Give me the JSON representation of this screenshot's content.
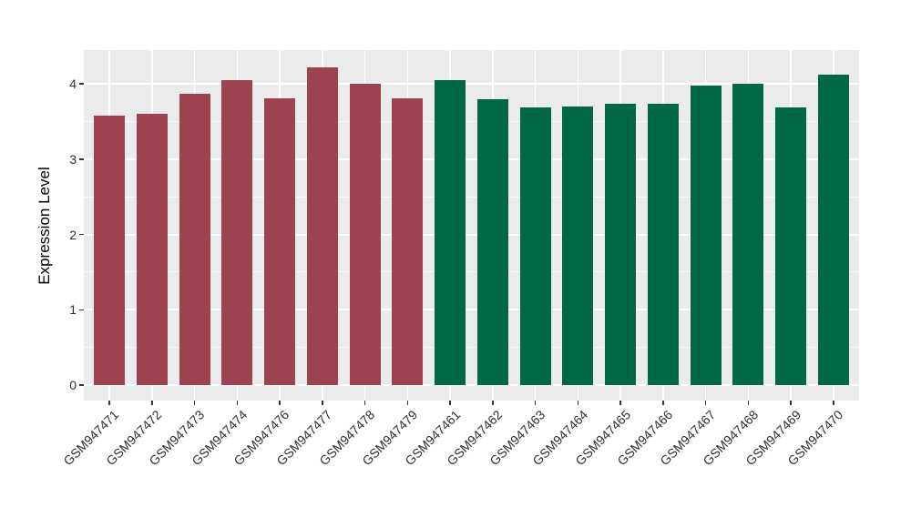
{
  "chart_data": {
    "type": "bar",
    "title": "",
    "xlabel": "",
    "ylabel": "Expression Level",
    "categories": [
      "GSM947471",
      "GSM947472",
      "GSM947473",
      "GSM947474",
      "GSM947476",
      "GSM947477",
      "GSM947478",
      "GSM947479",
      "GSM947461",
      "GSM947462",
      "GSM947463",
      "GSM947464",
      "GSM947465",
      "GSM947466",
      "GSM947467",
      "GSM947468",
      "GSM947469",
      "GSM947470"
    ],
    "values": [
      3.58,
      3.6,
      3.87,
      4.05,
      3.81,
      4.22,
      4.0,
      3.81,
      4.05,
      3.79,
      3.68,
      3.7,
      3.73,
      3.73,
      3.97,
      4.0,
      3.69,
      4.12
    ],
    "groups": [
      "group1",
      "group1",
      "group1",
      "group1",
      "group1",
      "group1",
      "group1",
      "group1",
      "group2",
      "group2",
      "group2",
      "group2",
      "group2",
      "group2",
      "group2",
      "group2",
      "group2",
      "group2"
    ],
    "group_colors": {
      "group1": "#9D4350",
      "group2": "#006747"
    },
    "y_ticks": [
      0,
      1,
      2,
      3,
      4
    ],
    "y_minor_ticks": [
      0.5,
      1.5,
      2.5,
      3.5
    ],
    "ylim": [
      -0.21,
      4.43
    ],
    "grid": "on",
    "legend": "none",
    "panel_background": "#EBEBEB",
    "grid_color": "#FFFFFF",
    "tick_mark_color": "#333333",
    "tick_label_color": "#303030",
    "axis_title_color": "#000000"
  }
}
